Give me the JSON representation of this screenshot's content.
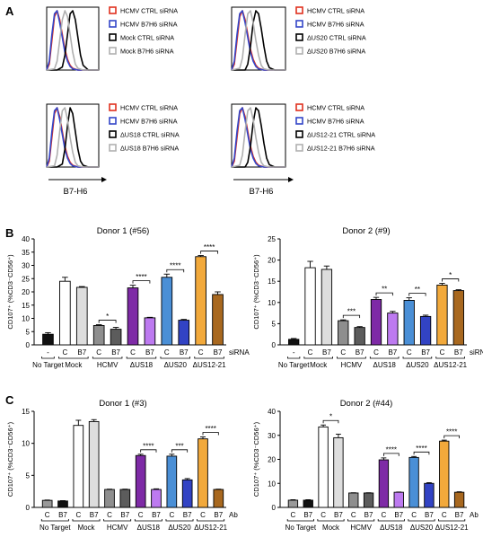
{
  "panels": {
    "a": "A",
    "b": "B",
    "c": "C"
  },
  "chart_data": [
    {
      "type": "line",
      "id": "A1",
      "xlabel": "",
      "series": [
        {
          "name": "HCMV CTRL siRNA",
          "color": "#e0301e",
          "x": [
            0,
            0.05,
            0.1,
            0.15,
            0.2,
            0.25,
            0.3,
            0.35,
            0.4,
            0.45,
            0.5,
            0.6,
            0.7,
            0.8,
            1
          ],
          "y": [
            0,
            0.1,
            0.5,
            0.9,
            1,
            0.85,
            0.6,
            0.35,
            0.18,
            0.08,
            0.03,
            0,
            0,
            0,
            0
          ]
        },
        {
          "name": "HCMV B7H6 siRNA",
          "color": "#3346c8",
          "x": [
            0,
            0.05,
            0.1,
            0.15,
            0.2,
            0.25,
            0.3,
            0.35,
            0.4,
            0.45,
            0.5,
            0.6,
            0.7,
            0.8,
            1
          ],
          "y": [
            0,
            0.15,
            0.6,
            0.95,
            1,
            0.8,
            0.55,
            0.3,
            0.15,
            0.06,
            0.02,
            0,
            0,
            0,
            0
          ]
        },
        {
          "name": "Mock CTRL siRNA",
          "color": "#000000",
          "x": [
            0,
            0.2,
            0.3,
            0.35,
            0.4,
            0.45,
            0.5,
            0.55,
            0.6,
            0.65,
            0.7,
            0.8,
            1
          ],
          "y": [
            0,
            0,
            0.05,
            0.25,
            0.6,
            0.95,
            1,
            0.85,
            0.55,
            0.25,
            0.08,
            0,
            0
          ]
        },
        {
          "name": "Mock B7H6 siRNA",
          "color": "#b0b0b0",
          "x": [
            0,
            0.15,
            0.2,
            0.25,
            0.3,
            0.35,
            0.4,
            0.45,
            0.5,
            0.55,
            0.6,
            0.7,
            1
          ],
          "y": [
            0,
            0.02,
            0.15,
            0.5,
            0.85,
            1,
            0.9,
            0.6,
            0.3,
            0.1,
            0.03,
            0,
            0
          ]
        }
      ]
    },
    {
      "type": "line",
      "id": "A2",
      "xlabel": "",
      "series": [
        {
          "name": "HCMV  CTRL siRNA",
          "color": "#e0301e",
          "x": [
            0,
            0.05,
            0.1,
            0.15,
            0.2,
            0.25,
            0.3,
            0.35,
            0.4,
            0.45,
            0.5,
            0.6,
            1
          ],
          "y": [
            0,
            0.1,
            0.5,
            0.9,
            1,
            0.85,
            0.6,
            0.35,
            0.18,
            0.08,
            0.03,
            0,
            0
          ]
        },
        {
          "name": "HCMV  B7H6 siRNA",
          "color": "#3346c8",
          "x": [
            0,
            0.05,
            0.1,
            0.15,
            0.2,
            0.25,
            0.3,
            0.35,
            0.4,
            0.45,
            0.5,
            0.6,
            1
          ],
          "y": [
            0,
            0.15,
            0.6,
            0.95,
            1,
            0.8,
            0.55,
            0.3,
            0.15,
            0.06,
            0.02,
            0,
            0
          ]
        },
        {
          "name": "ΔUS20 CTRL siRNA",
          "color": "#000000",
          "x": [
            0,
            0.25,
            0.3,
            0.35,
            0.4,
            0.45,
            0.5,
            0.55,
            0.6,
            0.65,
            0.7,
            0.8,
            1
          ],
          "y": [
            0,
            0,
            0.1,
            0.4,
            0.8,
            1,
            0.95,
            0.7,
            0.4,
            0.15,
            0.04,
            0,
            0
          ]
        },
        {
          "name": "ΔUS20 B7H6 siRNA",
          "color": "#b0b0b0",
          "x": [
            0,
            0.15,
            0.2,
            0.25,
            0.3,
            0.35,
            0.4,
            0.45,
            0.5,
            0.55,
            0.6,
            0.7,
            1
          ],
          "y": [
            0,
            0.03,
            0.2,
            0.6,
            0.95,
            1,
            0.8,
            0.5,
            0.25,
            0.08,
            0.02,
            0,
            0
          ]
        }
      ]
    },
    {
      "type": "line",
      "id": "A3",
      "xlabel": "B7-H6",
      "series": [
        {
          "name": "HCMV CTRL siRNA",
          "color": "#e0301e",
          "x": [
            0,
            0.05,
            0.1,
            0.15,
            0.2,
            0.25,
            0.3,
            0.35,
            0.4,
            0.45,
            0.5,
            0.6,
            1
          ],
          "y": [
            0,
            0.1,
            0.5,
            0.9,
            1,
            0.85,
            0.6,
            0.35,
            0.18,
            0.08,
            0.03,
            0,
            0
          ]
        },
        {
          "name": "HCMV B7H6 siRNA",
          "color": "#3346c8",
          "x": [
            0,
            0.05,
            0.1,
            0.15,
            0.2,
            0.25,
            0.3,
            0.35,
            0.4,
            0.45,
            0.5,
            0.6,
            1
          ],
          "y": [
            0,
            0.15,
            0.6,
            0.95,
            1,
            0.8,
            0.55,
            0.3,
            0.15,
            0.06,
            0.02,
            0,
            0
          ]
        },
        {
          "name": "ΔUS18 CTRL siRNA",
          "color": "#000000",
          "x": [
            0,
            0.2,
            0.3,
            0.35,
            0.4,
            0.45,
            0.5,
            0.55,
            0.6,
            0.65,
            0.7,
            0.8,
            1
          ],
          "y": [
            0,
            0,
            0.05,
            0.3,
            0.7,
            1,
            0.9,
            0.6,
            0.3,
            0.1,
            0.03,
            0,
            0
          ]
        },
        {
          "name": "ΔUS18 B7H6 siRNA",
          "color": "#b0b0b0",
          "x": [
            0,
            0.15,
            0.2,
            0.25,
            0.3,
            0.35,
            0.4,
            0.45,
            0.5,
            0.55,
            0.6,
            0.7,
            1
          ],
          "y": [
            0,
            0.02,
            0.2,
            0.6,
            0.95,
            1,
            0.8,
            0.5,
            0.25,
            0.08,
            0.02,
            0,
            0
          ]
        }
      ]
    },
    {
      "type": "line",
      "id": "A4",
      "xlabel": "B7-H6",
      "series": [
        {
          "name": "HCMV  CTRL siRNA",
          "color": "#e0301e",
          "x": [
            0,
            0.05,
            0.1,
            0.15,
            0.2,
            0.25,
            0.3,
            0.35,
            0.4,
            0.45,
            0.5,
            0.6,
            1
          ],
          "y": [
            0,
            0.1,
            0.5,
            0.9,
            1,
            0.85,
            0.6,
            0.35,
            0.18,
            0.08,
            0.03,
            0,
            0
          ]
        },
        {
          "name": "HCMV B7H6 siRNA",
          "color": "#3346c8",
          "x": [
            0,
            0.05,
            0.1,
            0.15,
            0.2,
            0.25,
            0.3,
            0.35,
            0.4,
            0.45,
            0.5,
            0.6,
            1
          ],
          "y": [
            0,
            0.15,
            0.6,
            0.95,
            1,
            0.8,
            0.55,
            0.3,
            0.15,
            0.06,
            0.02,
            0,
            0
          ]
        },
        {
          "name": "ΔUS12-21 CTRL siRNA",
          "color": "#000000",
          "x": [
            0,
            0.25,
            0.3,
            0.35,
            0.4,
            0.45,
            0.5,
            0.55,
            0.6,
            0.65,
            0.7,
            0.8,
            1
          ],
          "y": [
            0,
            0,
            0.08,
            0.35,
            0.75,
            1,
            0.95,
            0.7,
            0.4,
            0.15,
            0.04,
            0,
            0
          ]
        },
        {
          "name": "ΔUS12-21 B7H6 siRNA",
          "color": "#b0b0b0",
          "x": [
            0,
            0.15,
            0.2,
            0.25,
            0.3,
            0.35,
            0.4,
            0.45,
            0.5,
            0.55,
            0.6,
            0.7,
            1
          ],
          "y": [
            0,
            0.03,
            0.2,
            0.6,
            0.95,
            1,
            0.8,
            0.5,
            0.25,
            0.08,
            0.02,
            0,
            0
          ]
        }
      ]
    },
    {
      "type": "bar",
      "id": "B1",
      "title": "Donor 1 (#56)",
      "ylabel": "CD107⁺ (%CD3⁻CD56⁺)",
      "ylim": [
        0,
        40
      ],
      "yticks": [
        0,
        5,
        10,
        15,
        20,
        25,
        30,
        35,
        40
      ],
      "bar_labels": [
        "-",
        "C",
        "B7",
        "C",
        "B7",
        "C",
        "B7",
        "C",
        "B7",
        "C",
        "B7"
      ],
      "values": [
        4,
        24,
        21.7,
        7.3,
        5.9,
        21.5,
        10.2,
        25.5,
        9.3,
        33.3,
        19
      ],
      "errors": [
        0.6,
        1.5,
        0.3,
        0.3,
        0.7,
        1.0,
        0.2,
        1.2,
        0.3,
        0.4,
        1.0
      ],
      "colors": [
        "#111111",
        "#ffffff",
        "#dddddd",
        "#8e8e8e",
        "#5c5c5c",
        "#7e2aa6",
        "#bd7af0",
        "#4a8fd6",
        "#3243c4",
        "#f2a93b",
        "#a8681f"
      ],
      "groups": [
        "No Target",
        "Mock",
        "HCMV",
        "ΔUS18",
        "ΔUS20",
        "ΔUS12-21"
      ],
      "group_span": [
        [
          0,
          0
        ],
        [
          1,
          2
        ],
        [
          3,
          4
        ],
        [
          5,
          6
        ],
        [
          7,
          8
        ],
        [
          9,
          10
        ]
      ],
      "axis_tag": "siRNA",
      "significance": [
        {
          "pair": [
            3,
            4
          ],
          "label": "*"
        },
        {
          "pair": [
            5,
            6
          ],
          "label": "****"
        },
        {
          "pair": [
            7,
            8
          ],
          "label": "****"
        },
        {
          "pair": [
            9,
            10
          ],
          "label": "****"
        }
      ]
    },
    {
      "type": "bar",
      "id": "B2",
      "title": "Donor 2 (#9)",
      "ylabel": "CD107⁺ (%CD3⁻CD56⁺)",
      "ylim": [
        0,
        25
      ],
      "yticks": [
        0,
        5,
        10,
        15,
        20,
        25
      ],
      "bar_labels": [
        "-",
        "C",
        "B7",
        "C",
        "B7",
        "C",
        "B7",
        "C",
        "B7",
        "C",
        "B7"
      ],
      "values": [
        1.3,
        18.2,
        17.8,
        5.7,
        4.1,
        10.7,
        7.5,
        10.5,
        6.7,
        14.1,
        12.8
      ],
      "errors": [
        0.2,
        1.5,
        0.8,
        0.2,
        0.2,
        0.5,
        0.4,
        0.6,
        0.3,
        0.4,
        0.2
      ],
      "colors": [
        "#111111",
        "#ffffff",
        "#dddddd",
        "#8e8e8e",
        "#5c5c5c",
        "#7e2aa6",
        "#bd7af0",
        "#4a8fd6",
        "#3243c4",
        "#f2a93b",
        "#a8681f"
      ],
      "groups": [
        "No Target",
        "Mock",
        "HCMV",
        "ΔUS18",
        "ΔUS20",
        "ΔUS12-21"
      ],
      "group_span": [
        [
          0,
          0
        ],
        [
          1,
          2
        ],
        [
          3,
          4
        ],
        [
          5,
          6
        ],
        [
          7,
          8
        ],
        [
          9,
          10
        ]
      ],
      "axis_tag": "siRNA",
      "significance": [
        {
          "pair": [
            3,
            4
          ],
          "label": "***"
        },
        {
          "pair": [
            5,
            6
          ],
          "label": "**"
        },
        {
          "pair": [
            7,
            8
          ],
          "label": "**"
        },
        {
          "pair": [
            9,
            10
          ],
          "label": "*"
        }
      ]
    },
    {
      "type": "bar",
      "id": "C1",
      "title": "Donor 1 (#3)",
      "ylabel": "CD107⁺ (%CD3⁻CD56⁺)",
      "ylim": [
        0,
        15
      ],
      "yticks": [
        0,
        5,
        10,
        15
      ],
      "bar_labels": [
        "C",
        "B7",
        "C",
        "B7",
        "C",
        "B7",
        "C",
        "B7",
        "C",
        "B7",
        "C",
        "B7"
      ],
      "values": [
        1.1,
        1.0,
        12.8,
        13.4,
        2.8,
        2.8,
        8.1,
        2.8,
        8.0,
        4.3,
        10.7,
        2.8
      ],
      "errors": [
        0.05,
        0.05,
        0.8,
        0.3,
        0.05,
        0.05,
        0.2,
        0.1,
        0.3,
        0.2,
        0.3,
        0.05
      ],
      "colors": [
        "#999999",
        "#111111",
        "#ffffff",
        "#dddddd",
        "#8e8e8e",
        "#5c5c5c",
        "#7e2aa6",
        "#bd7af0",
        "#4a8fd6",
        "#3243c4",
        "#f2a93b",
        "#a8681f"
      ],
      "groups": [
        "No Target",
        "Mock",
        "HCMV",
        "ΔUS18",
        "ΔUS20",
        "ΔUS12-21"
      ],
      "group_span": [
        [
          0,
          1
        ],
        [
          2,
          3
        ],
        [
          4,
          5
        ],
        [
          6,
          7
        ],
        [
          8,
          9
        ],
        [
          10,
          11
        ]
      ],
      "axis_tag": "Ab",
      "significance": [
        {
          "pair": [
            6,
            7
          ],
          "label": "****"
        },
        {
          "pair": [
            8,
            9
          ],
          "label": "***"
        },
        {
          "pair": [
            10,
            11
          ],
          "label": "****"
        }
      ]
    },
    {
      "type": "bar",
      "id": "C2",
      "title": "Donor 2 (#44)",
      "ylabel": "CD107⁺ (%CD3⁻CD56⁺)",
      "ylim": [
        0,
        40
      ],
      "yticks": [
        0,
        10,
        20,
        30,
        40
      ],
      "bar_labels": [
        "C",
        "B7",
        "C",
        "B7",
        "C",
        "B7",
        "C",
        "B7",
        "C",
        "B7",
        "C",
        "B7"
      ],
      "values": [
        3.0,
        3.0,
        33.5,
        29.0,
        6.0,
        6.0,
        19.8,
        6.3,
        20.8,
        10.0,
        27.6,
        6.3
      ],
      "errors": [
        0.2,
        0.2,
        0.8,
        1.5,
        0.1,
        0.1,
        0.8,
        0.1,
        0.4,
        0.3,
        0.4,
        0.2
      ],
      "colors": [
        "#999999",
        "#111111",
        "#ffffff",
        "#dddddd",
        "#8e8e8e",
        "#5c5c5c",
        "#7e2aa6",
        "#bd7af0",
        "#4a8fd6",
        "#3243c4",
        "#f2a93b",
        "#a8681f"
      ],
      "groups": [
        "No Target",
        "Mock",
        "HCMV",
        "ΔUS18",
        "ΔUS20",
        "ΔUS12-21"
      ],
      "group_span": [
        [
          0,
          1
        ],
        [
          2,
          3
        ],
        [
          4,
          5
        ],
        [
          6,
          7
        ],
        [
          8,
          9
        ],
        [
          10,
          11
        ]
      ],
      "axis_tag": "Ab",
      "significance": [
        {
          "pair": [
            2,
            3
          ],
          "label": "*"
        },
        {
          "pair": [
            6,
            7
          ],
          "label": "****"
        },
        {
          "pair": [
            8,
            9
          ],
          "label": "****"
        },
        {
          "pair": [
            10,
            11
          ],
          "label": "****"
        }
      ]
    }
  ]
}
